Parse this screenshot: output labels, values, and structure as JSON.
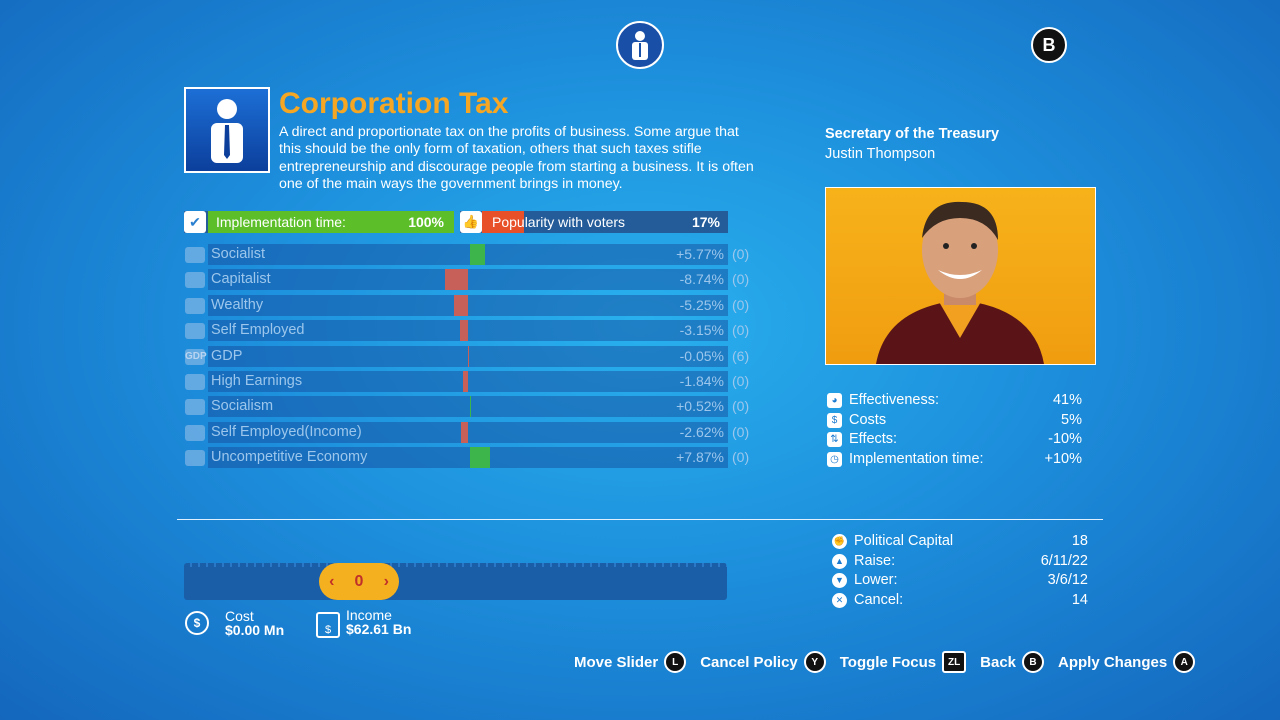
{
  "top_button": "B",
  "policy": {
    "title": "Corporation Tax",
    "description": "A direct and proportionate tax on the profits of business. Some argue that this should be the only form of taxation, others that such taxes stifle entrepreneurship and discourage people from starting a business. It is often one of the main ways the government brings in money.",
    "implementation": {
      "label": "Implementation time:",
      "value": 100,
      "value_label": "100%"
    },
    "popularity": {
      "label": "Popularity with voters",
      "value": 17,
      "value_label": "17%"
    }
  },
  "effects": [
    {
      "name": "Socialist",
      "value": 5.77,
      "value_label": "+5.77%",
      "delay": "(0)"
    },
    {
      "name": "Capitalist",
      "value": -8.74,
      "value_label": "-8.74%",
      "delay": "(0)"
    },
    {
      "name": "Wealthy",
      "value": -5.25,
      "value_label": "-5.25%",
      "delay": "(0)"
    },
    {
      "name": "Self Employed",
      "value": -3.15,
      "value_label": "-3.15%",
      "delay": "(0)"
    },
    {
      "name": "GDP",
      "icon_text": "GDP",
      "value": -0.05,
      "value_label": "-0.05%",
      "delay": "(6)"
    },
    {
      "name": "High Earnings",
      "value": -1.84,
      "value_label": "-1.84%",
      "delay": "(0)"
    },
    {
      "name": "Socialism",
      "value": 0.52,
      "value_label": "+0.52%",
      "delay": "(0)"
    },
    {
      "name": "Self Employed(Income)",
      "value": -2.62,
      "value_label": "-2.62%",
      "delay": "(0)"
    },
    {
      "name": "Uncompetitive Economy",
      "value": 7.87,
      "value_label": "+7.87%",
      "delay": "(0)"
    }
  ],
  "minister": {
    "role": "Secretary of the Treasury",
    "name": "Justin Thompson"
  },
  "stats": [
    {
      "label": "Effectiveness:",
      "value": "41%"
    },
    {
      "label": "Costs",
      "value": "5%"
    },
    {
      "label": "Effects:",
      "value": "-10%"
    },
    {
      "label": "Implementation time:",
      "value": "+10%"
    }
  ],
  "slider": {
    "value": "0"
  },
  "cost": {
    "label": "Cost",
    "value": "$0.00 Mn"
  },
  "income": {
    "label": "Income",
    "value": "$62.61 Bn"
  },
  "capital": [
    {
      "label": "Political Capital",
      "value": "18"
    },
    {
      "label": "Raise:",
      "value": "6/11/22"
    },
    {
      "label": "Lower:",
      "value": "3/6/12"
    },
    {
      "label": "Cancel:",
      "value": "14"
    }
  ],
  "controls": [
    {
      "label": "Move Slider",
      "button": "L"
    },
    {
      "label": "Cancel Policy",
      "button": "Y"
    },
    {
      "label": "Toggle Focus",
      "button": "ZL"
    },
    {
      "label": "Back",
      "button": "B"
    },
    {
      "label": "Apply Changes",
      "button": "A"
    }
  ]
}
